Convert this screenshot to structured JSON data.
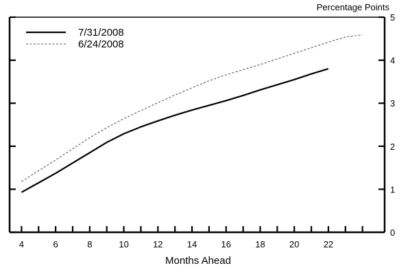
{
  "chart_data": {
    "type": "line",
    "title": "",
    "xlabel": "Months Ahead",
    "ylabel": "Percentage Points",
    "xlim": [
      3.3,
      25.3
    ],
    "ylim": [
      0,
      5
    ],
    "x_ticks": [
      4,
      6,
      8,
      10,
      12,
      14,
      16,
      18,
      20,
      22
    ],
    "x_minor_ticks": [
      5,
      7,
      9,
      11,
      13,
      15,
      17,
      19,
      21,
      23,
      24
    ],
    "y_ticks": [
      0,
      1,
      2,
      3,
      4,
      5
    ],
    "y_axis_side": "right",
    "grid": false,
    "legend_position": "top-left",
    "series": [
      {
        "name": "7/31/2008",
        "style": "solid",
        "color": "#000000",
        "x": [
          4,
          5,
          6,
          7,
          8,
          9,
          10,
          11,
          12,
          13,
          14,
          15,
          16,
          17,
          18,
          19,
          20,
          21,
          22
        ],
        "y": [
          0.93,
          1.15,
          1.37,
          1.61,
          1.85,
          2.09,
          2.29,
          2.45,
          2.59,
          2.72,
          2.84,
          2.95,
          3.06,
          3.18,
          3.31,
          3.43,
          3.55,
          3.68,
          3.8
        ]
      },
      {
        "name": "6/24/2008",
        "style": "dashed",
        "color": "#555555",
        "x": [
          4,
          5,
          6,
          7,
          8,
          9,
          10,
          11,
          12,
          13,
          14,
          15,
          16,
          17,
          18,
          19,
          20,
          21,
          22,
          23,
          24
        ],
        "y": [
          1.18,
          1.43,
          1.68,
          1.94,
          2.2,
          2.43,
          2.64,
          2.83,
          3.01,
          3.19,
          3.36,
          3.52,
          3.66,
          3.78,
          3.9,
          4.03,
          4.16,
          4.29,
          4.42,
          4.54,
          4.59
        ]
      }
    ]
  }
}
